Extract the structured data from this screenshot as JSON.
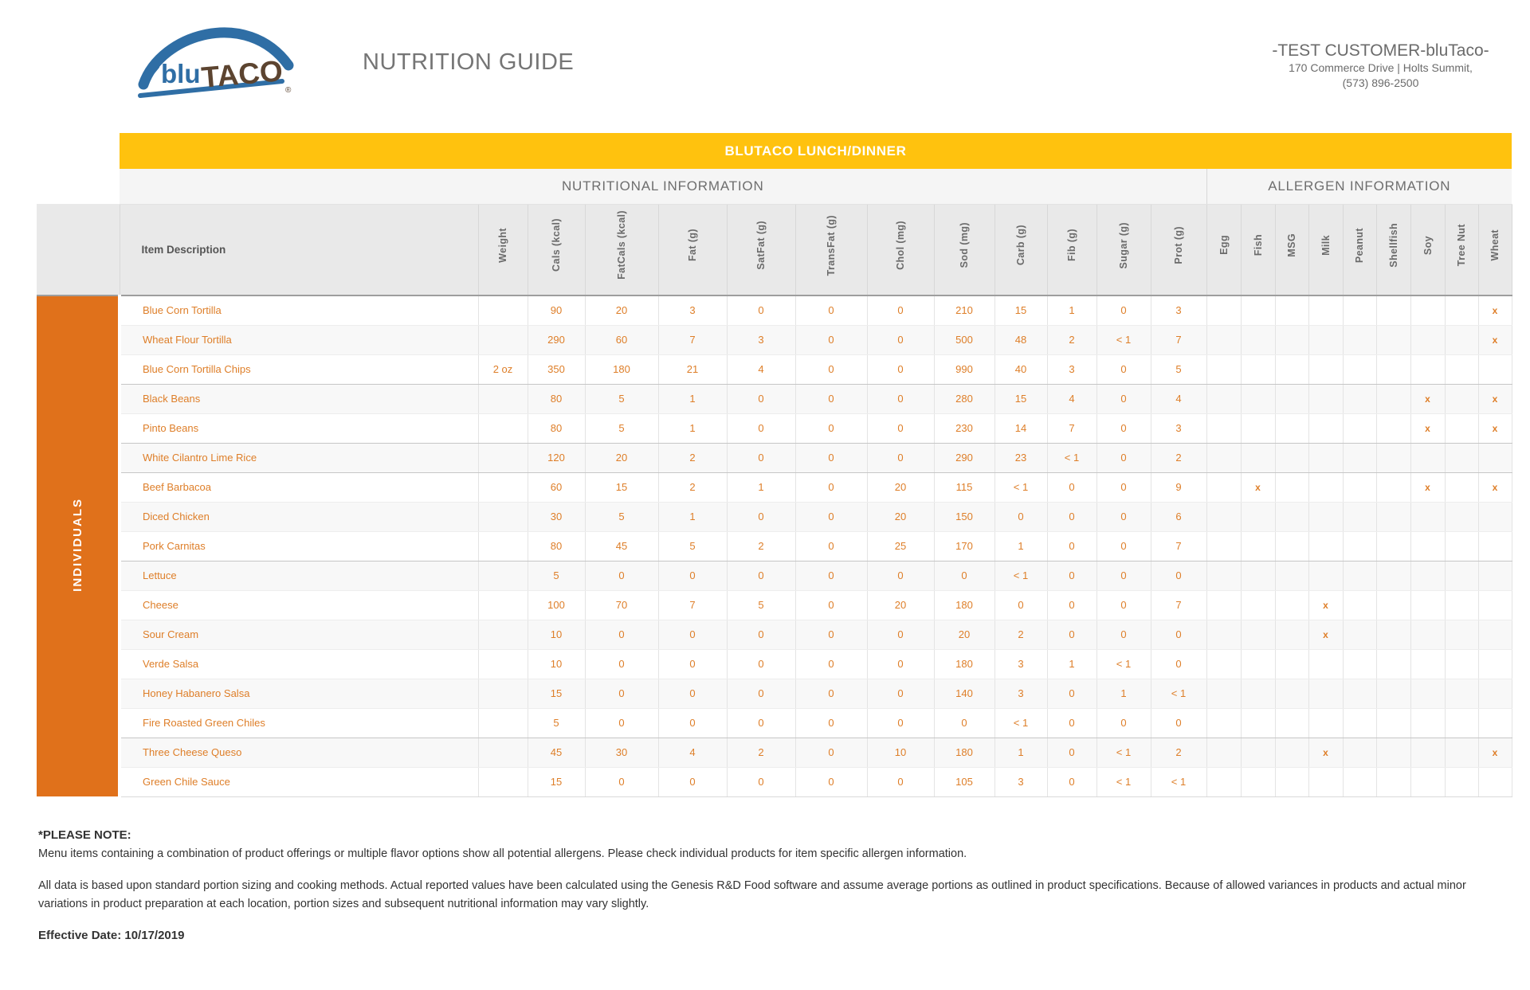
{
  "header": {
    "logo_blu": "blu",
    "logo_taco": "TACO",
    "logo_reg": "®",
    "title": "NUTRITION GUIDE",
    "customer_name": "-TEST CUSTOMER-bluTaco-",
    "customer_address": "170 Commerce Drive | Holts Summit,",
    "customer_phone": "(573) 896-2500"
  },
  "table": {
    "banner": "BLUTACO LUNCH/DINNER",
    "section_nutrition": "NUTRITIONAL INFORMATION",
    "section_allergen": "ALLERGEN INFORMATION",
    "row_group_label": "INDIVIDUALS",
    "item_col_header": "Item Description",
    "nutrient_cols": [
      "Weight",
      "Cals (kcal)",
      "FatCals (kcal)",
      "Fat (g)",
      "SatFat (g)",
      "TransFat (g)",
      "Chol (mg)",
      "Sod (mg)",
      "Carb (g)",
      "Fib (g)",
      "Sugar (g)",
      "Prot (g)"
    ],
    "allergen_cols": [
      "Egg",
      "Fish",
      "MSG",
      "Milk",
      "Peanut",
      "Shellfish",
      "Soy",
      "Tree Nut",
      "Wheat"
    ],
    "rows": [
      {
        "item": "Blue Corn Tortilla",
        "values": [
          "",
          "90",
          "20",
          "3",
          "0",
          "0",
          "0",
          "210",
          "15",
          "1",
          "0",
          "3"
        ],
        "allergens": [
          "",
          "",
          "",
          "",
          "",
          "",
          "",
          "",
          "x"
        ],
        "sep": false
      },
      {
        "item": "Wheat Flour Tortilla",
        "values": [
          "",
          "290",
          "60",
          "7",
          "3",
          "0",
          "0",
          "500",
          "48",
          "2",
          "< 1",
          "7"
        ],
        "allergens": [
          "",
          "",
          "",
          "",
          "",
          "",
          "",
          "",
          "x"
        ],
        "sep": false
      },
      {
        "item": "Blue Corn Tortilla Chips",
        "values": [
          "2 oz",
          "350",
          "180",
          "21",
          "4",
          "0",
          "0",
          "990",
          "40",
          "3",
          "0",
          "5"
        ],
        "allergens": [
          "",
          "",
          "",
          "",
          "",
          "",
          "",
          "",
          ""
        ],
        "sep": true
      },
      {
        "item": "Black Beans",
        "values": [
          "",
          "80",
          "5",
          "1",
          "0",
          "0",
          "0",
          "280",
          "15",
          "4",
          "0",
          "4"
        ],
        "allergens": [
          "",
          "",
          "",
          "",
          "",
          "",
          "x",
          "",
          "x"
        ],
        "sep": false
      },
      {
        "item": "Pinto Beans",
        "values": [
          "",
          "80",
          "5",
          "1",
          "0",
          "0",
          "0",
          "230",
          "14",
          "7",
          "0",
          "3"
        ],
        "allergens": [
          "",
          "",
          "",
          "",
          "",
          "",
          "x",
          "",
          "x"
        ],
        "sep": true
      },
      {
        "item": "White Cilantro Lime Rice",
        "values": [
          "",
          "120",
          "20",
          "2",
          "0",
          "0",
          "0",
          "290",
          "23",
          "< 1",
          "0",
          "2"
        ],
        "allergens": [
          "",
          "",
          "",
          "",
          "",
          "",
          "",
          "",
          ""
        ],
        "sep": true
      },
      {
        "item": "Beef Barbacoa",
        "values": [
          "",
          "60",
          "15",
          "2",
          "1",
          "0",
          "20",
          "115",
          "< 1",
          "0",
          "0",
          "9"
        ],
        "allergens": [
          "",
          "x",
          "",
          "",
          "",
          "",
          "x",
          "",
          "x"
        ],
        "sep": false
      },
      {
        "item": "Diced Chicken",
        "values": [
          "",
          "30",
          "5",
          "1",
          "0",
          "0",
          "20",
          "150",
          "0",
          "0",
          "0",
          "6"
        ],
        "allergens": [
          "",
          "",
          "",
          "",
          "",
          "",
          "",
          "",
          ""
        ],
        "sep": false
      },
      {
        "item": "Pork Carnitas",
        "values": [
          "",
          "80",
          "45",
          "5",
          "2",
          "0",
          "25",
          "170",
          "1",
          "0",
          "0",
          "7"
        ],
        "allergens": [
          "",
          "",
          "",
          "",
          "",
          "",
          "",
          "",
          ""
        ],
        "sep": true
      },
      {
        "item": "Lettuce",
        "values": [
          "",
          "5",
          "0",
          "0",
          "0",
          "0",
          "0",
          "0",
          "< 1",
          "0",
          "0",
          "0"
        ],
        "allergens": [
          "",
          "",
          "",
          "",
          "",
          "",
          "",
          "",
          ""
        ],
        "sep": false
      },
      {
        "item": "Cheese",
        "values": [
          "",
          "100",
          "70",
          "7",
          "5",
          "0",
          "20",
          "180",
          "0",
          "0",
          "0",
          "7"
        ],
        "allergens": [
          "",
          "",
          "",
          "x",
          "",
          "",
          "",
          "",
          ""
        ],
        "sep": false
      },
      {
        "item": "Sour Cream",
        "values": [
          "",
          "10",
          "0",
          "0",
          "0",
          "0",
          "0",
          "20",
          "2",
          "0",
          "0",
          "0"
        ],
        "allergens": [
          "",
          "",
          "",
          "x",
          "",
          "",
          "",
          "",
          ""
        ],
        "sep": false
      },
      {
        "item": "Verde Salsa",
        "values": [
          "",
          "10",
          "0",
          "0",
          "0",
          "0",
          "0",
          "180",
          "3",
          "1",
          "< 1",
          "0"
        ],
        "allergens": [
          "",
          "",
          "",
          "",
          "",
          "",
          "",
          "",
          ""
        ],
        "sep": false
      },
      {
        "item": "Honey Habanero Salsa",
        "values": [
          "",
          "15",
          "0",
          "0",
          "0",
          "0",
          "0",
          "140",
          "3",
          "0",
          "1",
          "< 1"
        ],
        "allergens": [
          "",
          "",
          "",
          "",
          "",
          "",
          "",
          "",
          ""
        ],
        "sep": false
      },
      {
        "item": "Fire Roasted Green Chiles",
        "values": [
          "",
          "5",
          "0",
          "0",
          "0",
          "0",
          "0",
          "0",
          "< 1",
          "0",
          "0",
          "0"
        ],
        "allergens": [
          "",
          "",
          "",
          "",
          "",
          "",
          "",
          "",
          ""
        ],
        "sep": true
      },
      {
        "item": "Three Cheese Queso",
        "values": [
          "",
          "45",
          "30",
          "4",
          "2",
          "0",
          "10",
          "180",
          "1",
          "0",
          "< 1",
          "2"
        ],
        "allergens": [
          "",
          "",
          "",
          "x",
          "",
          "",
          "",
          "",
          "x"
        ],
        "sep": false
      },
      {
        "item": "Green Chile Sauce",
        "values": [
          "",
          "15",
          "0",
          "0",
          "0",
          "0",
          "0",
          "105",
          "3",
          "0",
          "< 1",
          "< 1"
        ],
        "allergens": [
          "",
          "",
          "",
          "",
          "",
          "",
          "",
          "",
          ""
        ],
        "sep": false
      }
    ]
  },
  "footer": {
    "note_title": "*PLEASE NOTE:",
    "note1": "Menu items containing a combination of product offerings or multiple flavor options show all potential allergens. Please check individual products for item specific allergen information.",
    "note2": "All data is based upon standard portion sizing and cooking methods. Actual reported values have been calculated using the Genesis R&D Food software and assume average portions as outlined in product specifications. Because of allowed variances in products and actual minor variations in product preparation at each location, portion sizes and subsequent nutritional information may vary slightly.",
    "effective": "Effective Date: 10/17/2019"
  },
  "colors": {
    "banner_yellow": "#FFC20E",
    "band_orange": "#E0711B",
    "row_text_orange": "#DE7E28",
    "logo_blue": "#2F6EA5",
    "logo_brown": "#5C4430"
  }
}
